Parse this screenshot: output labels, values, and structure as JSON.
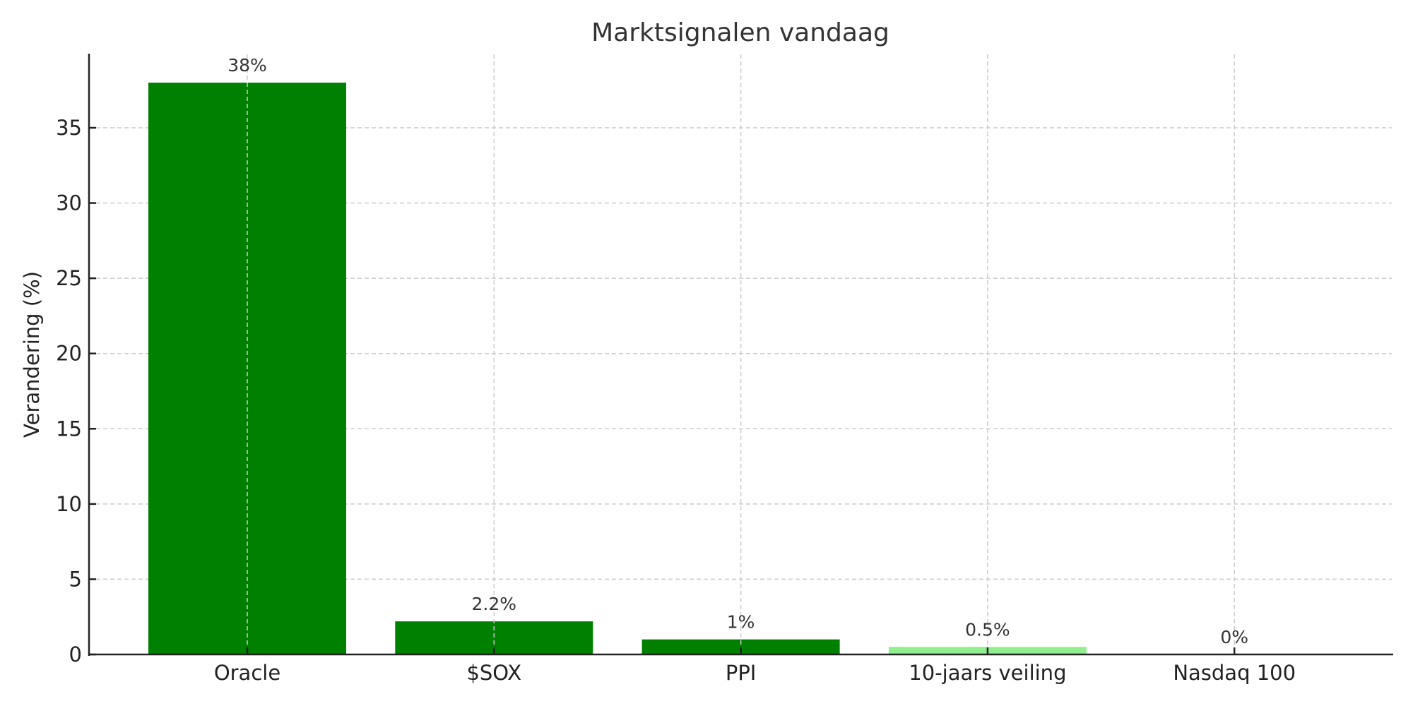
{
  "chart_data": {
    "type": "bar",
    "title": "Marktsignalen vandaag",
    "xlabel": "",
    "ylabel": "Verandering (%)",
    "categories": [
      "Oracle",
      "$SOX",
      "PPI",
      "10-jaars veiling",
      "Nasdaq 100"
    ],
    "values": [
      38,
      2.2,
      1,
      0.5,
      0
    ],
    "value_labels": [
      "38%",
      "2.2%",
      "1%",
      "0.5%",
      "0%"
    ],
    "bar_colors": [
      "#008000",
      "#008000",
      "#008000",
      "#90EE90",
      "#008000"
    ],
    "ylim": [
      0,
      39.5
    ],
    "yticks": [
      0,
      5,
      10,
      15,
      20,
      25,
      30,
      35
    ],
    "grid": true,
    "grid_style": "dashed",
    "legend": null
  },
  "colors": {
    "primary_bar": "#008000",
    "highlight_bar": "#90EE90",
    "grid": "#cccccc",
    "axis": "#222222",
    "text": "#333333"
  }
}
